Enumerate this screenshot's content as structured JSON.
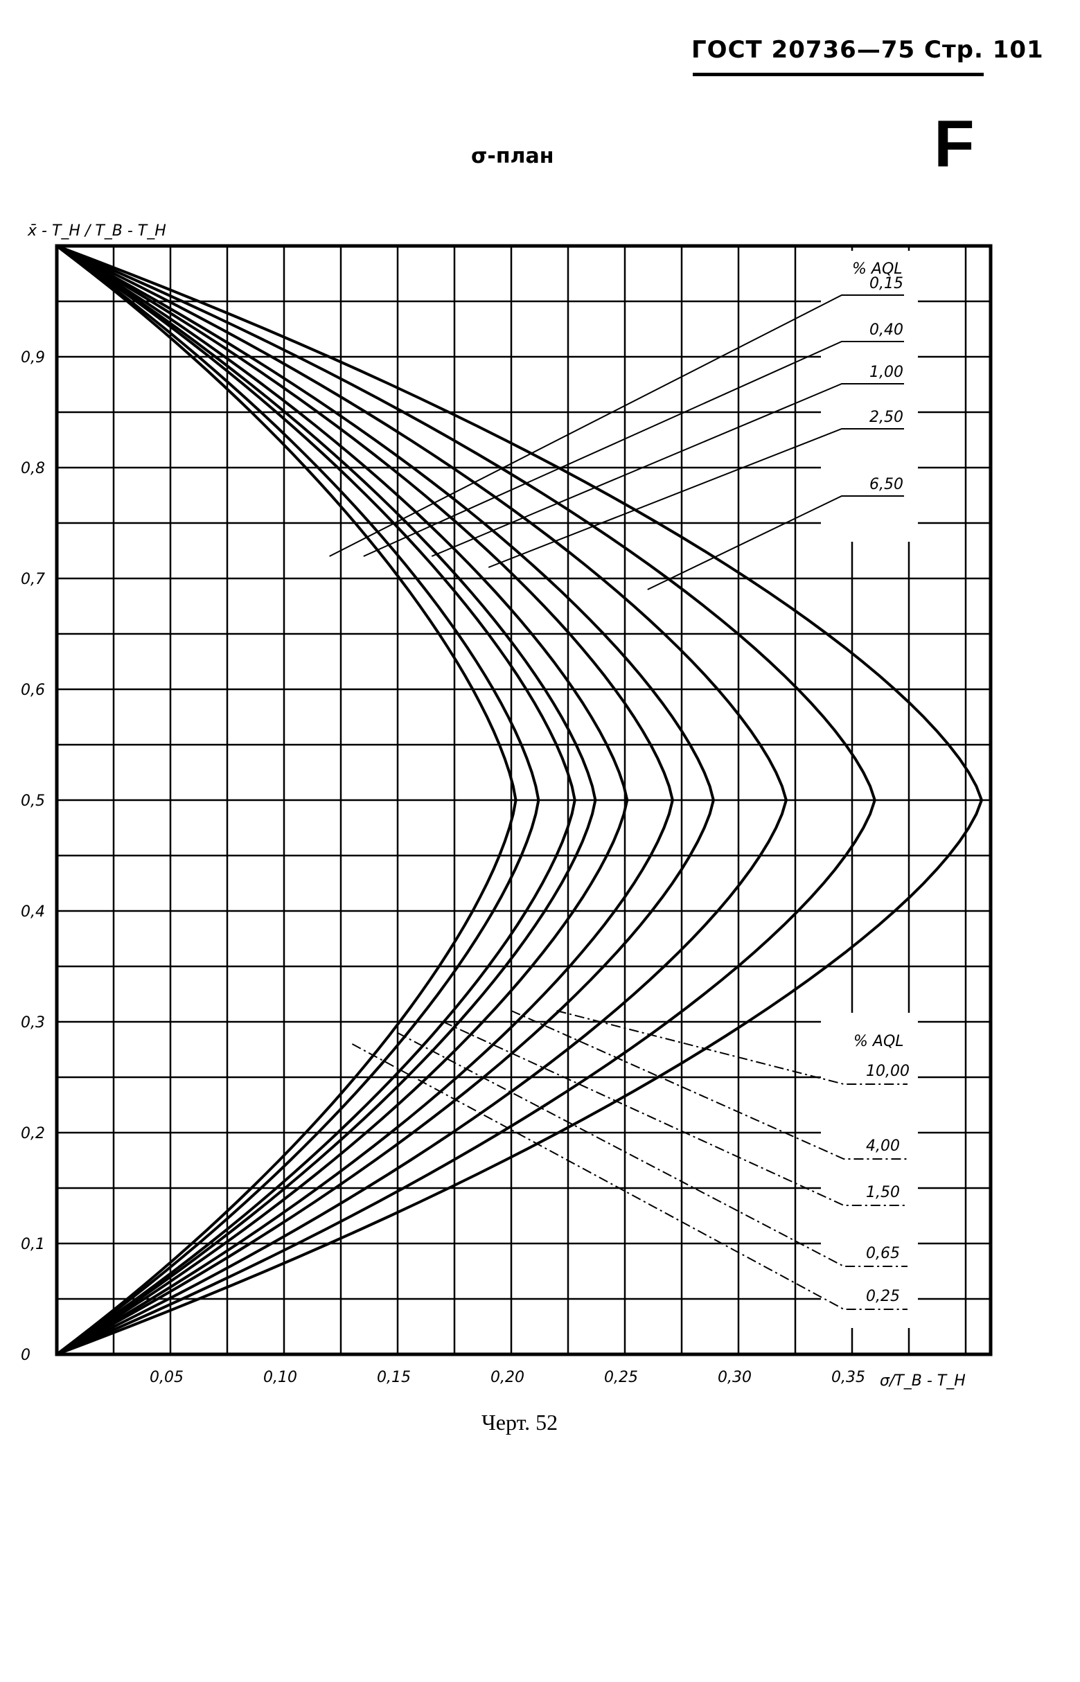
{
  "header": {
    "text": "ГОСТ 20736—75 Стр. 101",
    "section_letter": "F"
  },
  "title": "σ-план",
  "caption": "Черт. 52",
  "chart_data": {
    "type": "line",
    "title": "σ-план",
    "xlabel": "σ/T_B - T_H",
    "ylabel": "x̄ - T_H / T_B - T_H",
    "xlim": [
      0,
      0.425
    ],
    "ylim": [
      0,
      1.0
    ],
    "x_ticks": [
      "0,05",
      "0,10",
      "0,15",
      "0,20",
      "0,25",
      "0,30",
      "0,35"
    ],
    "y_ticks": [
      "0",
      "0,1",
      "0,2",
      "0,3",
      "0,4",
      "0,5",
      "0,6",
      "0,7",
      "0,8",
      "0,9"
    ],
    "grid": true,
    "legend_upper": {
      "title": "% AQL",
      "entries": [
        "0,15",
        "0,40",
        "1,00",
        "2,50",
        "6,50"
      ]
    },
    "legend_lower": {
      "title": "% AQL",
      "entries": [
        "10,00",
        "4,00",
        "1,50",
        "0,65",
        "0,25"
      ]
    },
    "series": [
      {
        "name": "AQL 0,15",
        "peak_x": 0.202,
        "peak_y": 0.5,
        "start": [
          0,
          1
        ],
        "end": [
          0,
          0
        ]
      },
      {
        "name": "AQL 0,25",
        "peak_x": 0.212,
        "peak_y": 0.5,
        "start": [
          0,
          1
        ],
        "end": [
          0,
          0
        ]
      },
      {
        "name": "AQL 0,40",
        "peak_x": 0.228,
        "peak_y": 0.5,
        "start": [
          0,
          1
        ],
        "end": [
          0,
          0
        ]
      },
      {
        "name": "AQL 0,65",
        "peak_x": 0.237,
        "peak_y": 0.5,
        "start": [
          0,
          1
        ],
        "end": [
          0,
          0
        ]
      },
      {
        "name": "AQL 1,00",
        "peak_x": 0.251,
        "peak_y": 0.5,
        "start": [
          0,
          1
        ],
        "end": [
          0,
          0
        ]
      },
      {
        "name": "AQL 1,50",
        "peak_x": 0.271,
        "peak_y": 0.5,
        "start": [
          0,
          1
        ],
        "end": [
          0,
          0
        ]
      },
      {
        "name": "AQL 2,50",
        "peak_x": 0.289,
        "peak_y": 0.5,
        "start": [
          0,
          1
        ],
        "end": [
          0,
          0
        ]
      },
      {
        "name": "AQL 4,00",
        "peak_x": 0.321,
        "peak_y": 0.5,
        "start": [
          0,
          1
        ],
        "end": [
          0,
          0
        ]
      },
      {
        "name": "AQL 6,50",
        "peak_x": 0.36,
        "peak_y": 0.5,
        "start": [
          0,
          1
        ],
        "end": [
          0,
          0
        ]
      },
      {
        "name": "AQL 10,00",
        "peak_x": 0.407,
        "peak_y": 0.5,
        "start": [
          0,
          1
        ],
        "end": [
          0,
          0
        ]
      }
    ]
  }
}
